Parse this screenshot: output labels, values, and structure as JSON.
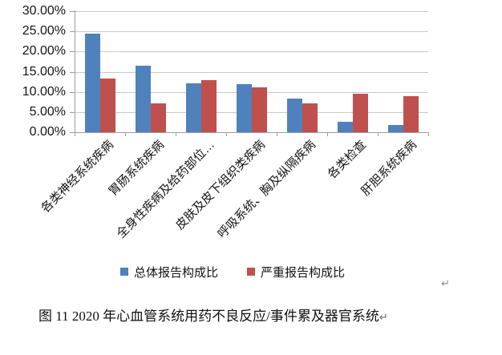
{
  "chart_data": {
    "type": "bar",
    "title": "",
    "xlabel": "",
    "ylabel": "",
    "categories": [
      "各类神经系统疾病",
      "胃肠系统疾病",
      "全身性疾病及给药部位…",
      "皮肤及皮下组织类疾病",
      "呼吸系统、胸及纵隔疾病",
      "各类检查",
      "肝胆系统疾病"
    ],
    "series": [
      {
        "name": "总体报告构成比",
        "color": "#4f81bd",
        "values": [
          24.4,
          16.4,
          12.1,
          11.9,
          8.3,
          2.6,
          1.8
        ]
      },
      {
        "name": "严重报告构成比",
        "color": "#c0504d",
        "values": [
          13.4,
          7.1,
          13.0,
          11.2,
          7.1,
          9.5,
          8.9
        ]
      }
    ],
    "ylim": [
      0,
      30
    ],
    "yticks": [
      "30.00%",
      "25.00%",
      "20.00%",
      "15.00%",
      "10.00%",
      "5.00%",
      "0.00%"
    ],
    "grid": true,
    "legend_position": "bottom"
  },
  "caption": {
    "text": "图 11  2020 年心血管系统用药不良反应/事件累及器官系统"
  },
  "marks": {
    "return_symbol": "↵"
  },
  "colors": {
    "axis": "#9d9d9d",
    "gridline": "#c9c9c9",
    "series_primary": "#4f81bd",
    "series_secondary": "#c0504d",
    "background": "#ffffff"
  }
}
